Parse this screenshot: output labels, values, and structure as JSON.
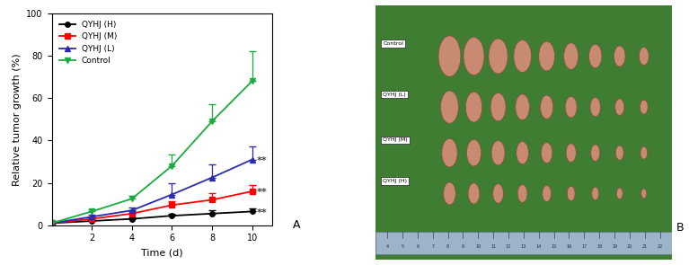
{
  "chart_data": {
    "type": "line",
    "x_label": "Time (d)",
    "y_label": "Relative tumor growth (%)",
    "x": [
      0,
      2,
      4,
      6,
      8,
      10
    ],
    "xlim": [
      0,
      11
    ],
    "xticks": [
      2,
      4,
      6,
      8,
      10
    ],
    "ylim": [
      0,
      100
    ],
    "yticks": [
      0,
      20,
      40,
      60,
      80,
      100
    ],
    "grid": false,
    "legend": "upper left",
    "series": [
      {
        "name": "QYHJ (H)",
        "color": "#000000",
        "marker": "circle",
        "values": [
          1,
          2,
          3,
          4.5,
          5.5,
          6.5
        ],
        "error": [
          0,
          0.5,
          0.8,
          1,
          1.5,
          1.5
        ],
        "significance": "**"
      },
      {
        "name": "QYHJ (M)",
        "color": "#ff0000",
        "marker": "square",
        "values": [
          1,
          3,
          5.5,
          9.5,
          12,
          16
        ],
        "error": [
          0,
          0.8,
          1,
          2,
          3,
          3
        ],
        "significance": "**"
      },
      {
        "name": "QYHJ (L)",
        "color": "#2b2bb0",
        "marker": "triangle_up",
        "values": [
          1,
          4,
          7,
          14.5,
          22.5,
          31
        ],
        "error": [
          0,
          1,
          1.5,
          5.5,
          6,
          6
        ],
        "significance": "**"
      },
      {
        "name": "Control",
        "color": "#1aab40",
        "marker": "triangle_down",
        "values": [
          1,
          6.5,
          12.5,
          28,
          49,
          68
        ],
        "error": [
          0,
          1,
          1.5,
          5.5,
          8,
          14
        ]
      }
    ]
  },
  "panel_a_label": "A",
  "photo": {
    "panel_label": "B",
    "groups": [
      {
        "label": "Control",
        "tumors": 9
      },
      {
        "label": "QYHJ (L)",
        "tumors": 9
      },
      {
        "label": "QYHJ (M)",
        "tumors": 9
      },
      {
        "label": "QYHJ (H)",
        "tumors": 9
      }
    ],
    "ruler": [
      4,
      5,
      6,
      7,
      8,
      9,
      10,
      11,
      12,
      13,
      14,
      15,
      16,
      17,
      18,
      19,
      20,
      21,
      22
    ]
  }
}
